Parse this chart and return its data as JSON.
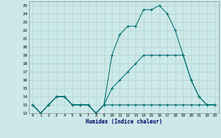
{
  "title": "",
  "xlabel": "Humidex (Indice chaleur)",
  "xlim": [
    -0.5,
    23.5
  ],
  "ylim": [
    12,
    25.5
  ],
  "yticks": [
    12,
    13,
    14,
    15,
    16,
    17,
    18,
    19,
    20,
    21,
    22,
    23,
    24,
    25
  ],
  "xticks": [
    0,
    1,
    2,
    3,
    4,
    5,
    6,
    7,
    8,
    9,
    10,
    11,
    12,
    13,
    14,
    15,
    16,
    17,
    18,
    19,
    20,
    21,
    22,
    23
  ],
  "bg_color": "#cce8e8",
  "line_color": "#007070",
  "line1_x": [
    0,
    1,
    2,
    3,
    4,
    5,
    6,
    7,
    8,
    9,
    10,
    11,
    12,
    13,
    14,
    15,
    16,
    17,
    18,
    19,
    20,
    21,
    22,
    23
  ],
  "line1_y": [
    13,
    12,
    13,
    14,
    14,
    13,
    13,
    13,
    12,
    13,
    13,
    13,
    13,
    13,
    13,
    13,
    13,
    13,
    13,
    13,
    13,
    13,
    13,
    13
  ],
  "line2_x": [
    0,
    1,
    2,
    3,
    4,
    5,
    6,
    7,
    8,
    9,
    10,
    11,
    12,
    13,
    14,
    15,
    16,
    17,
    18,
    19,
    20,
    21,
    22,
    23
  ],
  "line2_y": [
    13,
    12,
    13,
    14,
    14,
    13,
    13,
    13,
    12,
    13,
    15,
    16,
    17,
    18,
    19,
    19,
    19,
    19,
    19,
    19,
    16,
    14,
    13,
    13
  ],
  "line3_x": [
    0,
    1,
    2,
    3,
    4,
    5,
    6,
    7,
    8,
    9,
    10,
    11,
    12,
    13,
    14,
    15,
    16,
    17,
    18,
    19,
    20,
    21,
    22,
    23
  ],
  "line3_y": [
    13,
    12,
    13,
    14,
    14,
    13,
    13,
    13,
    12,
    13,
    19,
    21.5,
    22.5,
    22.5,
    24.5,
    24.5,
    25,
    24,
    22,
    19,
    16,
    14,
    13,
    13
  ]
}
